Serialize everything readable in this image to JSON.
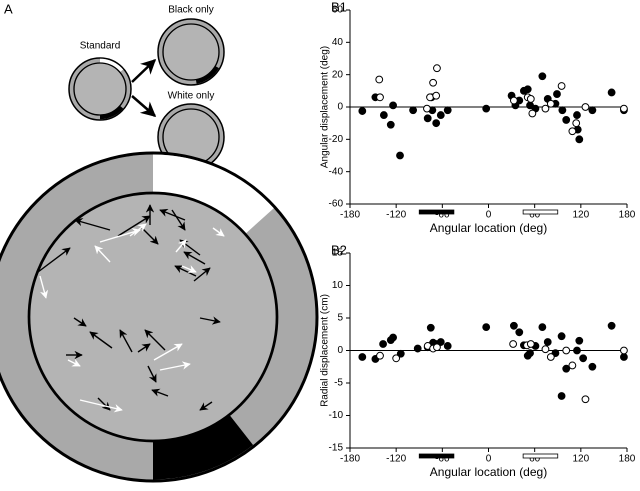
{
  "panel_a": {
    "label": "A",
    "standard": "Standard",
    "black_only": "Black only",
    "white_only": "White only"
  },
  "chart_data": [
    {
      "type": "scatter",
      "panel_label": "B1",
      "ylabel": "Angular displacement (deg)",
      "xlabel": "Angular location (deg)",
      "xlim": [
        -180,
        180
      ],
      "ylim": [
        -60,
        60
      ],
      "xticks": [
        -180,
        -120,
        -60,
        0,
        60,
        120,
        180
      ],
      "yticks": [
        -60,
        -40,
        -20,
        0,
        20,
        40,
        60
      ],
      "zero_line": true,
      "series": [
        {
          "color": "#000000",
          "marker": "filled",
          "x": [
            -164,
            -147,
            -136,
            -127,
            -124,
            -115,
            -98,
            -79,
            -74,
            -73,
            -68,
            -62,
            -53,
            -3,
            30,
            35,
            40,
            46,
            51,
            54,
            61,
            70,
            77,
            87,
            89,
            96,
            101,
            115,
            116,
            118,
            135,
            160,
            176
          ],
          "values": [
            -2.5,
            6,
            -5,
            -11,
            1,
            -30,
            -2,
            -7,
            6,
            -2,
            -10,
            -5,
            -2,
            -1,
            7,
            1,
            4,
            10,
            11,
            1,
            -1,
            19,
            5,
            2,
            8,
            -2,
            -8,
            -5,
            -14,
            -20,
            -2,
            9,
            -2
          ]
        },
        {
          "color": "#000000",
          "marker": "open",
          "x": [
            -142,
            -141,
            -80,
            -76,
            -72,
            -68,
            -67,
            33,
            51,
            55,
            57,
            74,
            81,
            95,
            109,
            114,
            126,
            176
          ],
          "values": [
            17,
            6,
            -1,
            6,
            15,
            7,
            24,
            4,
            6,
            5,
            -4,
            -1,
            2,
            13,
            -15,
            -10,
            0,
            -1
          ]
        }
      ],
      "cue_bars": [
        {
          "range": [
            -90,
            -45
          ],
          "color": "#000000"
        },
        {
          "range": [
            45,
            90
          ],
          "color": "#ffffff"
        }
      ]
    },
    {
      "type": "scatter",
      "panel_label": "B2",
      "ylabel": "Radial displacement (cm)",
      "xlabel": "Angular location (deg)",
      "xlim": [
        -180,
        180
      ],
      "ylim": [
        -15,
        15
      ],
      "xticks": [
        -180,
        -120,
        -60,
        0,
        60,
        120,
        180
      ],
      "yticks": [
        -15,
        -10,
        -5,
        0,
        5,
        10,
        15
      ],
      "zero_line": true,
      "series": [
        {
          "color": "#000000",
          "marker": "filled",
          "x": [
            -164,
            -147,
            -137,
            -127,
            -124,
            -114,
            -92,
            -79,
            -75,
            -72,
            -68,
            -62,
            -53,
            -3,
            33,
            40,
            46,
            51,
            54,
            61,
            70,
            77,
            87,
            95,
            95,
            101,
            115,
            118,
            123,
            135,
            160,
            176
          ],
          "values": [
            -1,
            -1.3,
            1,
            1.6,
            2,
            -0.5,
            0.3,
            0.5,
            3.5,
            1.2,
            1,
            1.3,
            0.7,
            3.6,
            3.8,
            2.8,
            0.8,
            -0.8,
            -0.4,
            0.7,
            3.6,
            1.3,
            -0.4,
            2.2,
            -7,
            -2.8,
            0,
            1.5,
            -1.2,
            -2.5,
            3.8,
            -1
          ]
        },
        {
          "color": "#000000",
          "marker": "open",
          "x": [
            -141,
            -120,
            -79,
            -72,
            -67,
            32,
            50,
            55,
            74,
            81,
            101,
            109,
            126,
            176
          ],
          "values": [
            -0.8,
            -1.2,
            0.7,
            0.3,
            0.5,
            1,
            0.8,
            1,
            0.2,
            -1,
            0,
            -2.3,
            -7.5,
            0
          ]
        }
      ],
      "cue_bars": [
        {
          "range": [
            -90,
            -45
          ],
          "color": "#000000"
        },
        {
          "range": [
            45,
            90
          ],
          "color": "#ffffff"
        }
      ]
    }
  ]
}
